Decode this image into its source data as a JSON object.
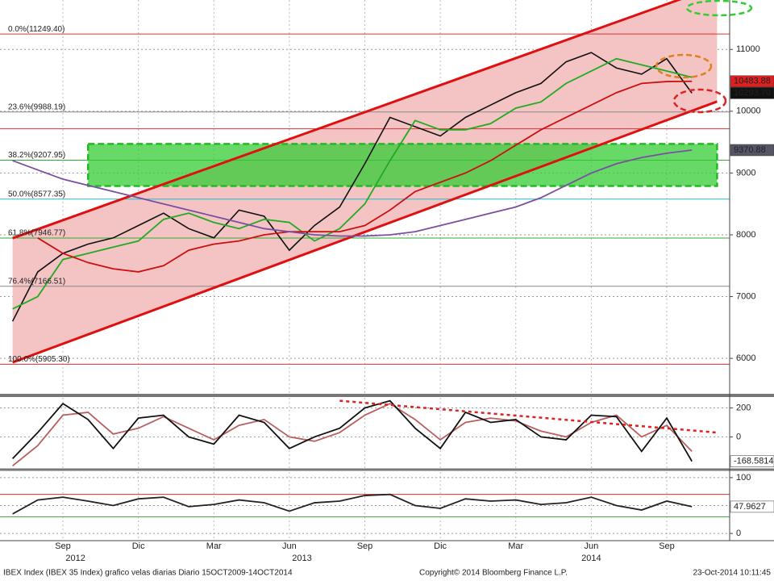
{
  "chart_data": [
    {
      "type": "line",
      "x": [
        "2012-07",
        "2012-08",
        "2012-09",
        "2012-10",
        "2012-11",
        "2012-12",
        "2013-01",
        "2013-02",
        "2013-03",
        "2013-04",
        "2013-05",
        "2013-06",
        "2013-07",
        "2013-08",
        "2013-09",
        "2013-10",
        "2013-11",
        "2013-12",
        "2014-01",
        "2014-02",
        "2014-03",
        "2014-04",
        "2014-05",
        "2014-06",
        "2014-07",
        "2014-08",
        "2014-09",
        "2014-10"
      ],
      "series": [
        {
          "color": "#111111",
          "values": [
            6600,
            7400,
            7700,
            7850,
            7950,
            8150,
            8350,
            8100,
            7950,
            8400,
            8300,
            7750,
            8150,
            8450,
            9150,
            9900,
            9750,
            9600,
            9900,
            10100,
            10300,
            10450,
            10800,
            10950,
            10700,
            10600,
            10850,
            10293.7
          ]
        },
        {
          "color": "#22aa22",
          "values": [
            6800,
            7000,
            7600,
            7700,
            7800,
            7900,
            8250,
            8350,
            8200,
            8100,
            8250,
            8200,
            7900,
            8100,
            8500,
            9200,
            9850,
            9700,
            9700,
            9800,
            10050,
            10150,
            10450,
            10650,
            10850,
            10750,
            10650,
            10550
          ]
        },
        {
          "color": "#cc1111",
          "values": [
            null,
            7950,
            7700,
            7550,
            7450,
            7400,
            7500,
            7750,
            7850,
            7900,
            8000,
            8050,
            8050,
            8050,
            8150,
            8400,
            8700,
            8850,
            9000,
            9200,
            9450,
            9700,
            9900,
            10100,
            10300,
            10450,
            10480,
            10483.88
          ]
        },
        {
          "color": "#7b4fa0",
          "values": [
            9200,
            9050,
            8900,
            8800,
            8700,
            8600,
            8500,
            8400,
            8300,
            8200,
            8100,
            8050,
            8000,
            7980,
            7980,
            8000,
            8050,
            8150,
            8250,
            8350,
            8450,
            8600,
            8800,
            9000,
            9150,
            9250,
            9320,
            9370.88
          ]
        }
      ],
      "ylim": [
        5440,
        11800
      ],
      "yticks": [
        6000,
        7000,
        8000,
        9000,
        10000,
        11000
      ],
      "grid": true,
      "channel": {
        "x": [
          "2012-07",
          "2014-11"
        ],
        "upper": [
          7945,
          12025
        ],
        "lower": [
          5935,
          10157
        ],
        "color": "#e01010",
        "fill": "#f4c4c4"
      },
      "zone": {
        "x": [
          "2012-10",
          "2014-11"
        ],
        "range": [
          8790,
          9470
        ],
        "color": "#33cc33"
      },
      "levels": [
        {
          "label": "0.0%(11249.40)",
          "value": 11249.4,
          "color": "#e03030"
        },
        {
          "label": "23.6%(9988.19)",
          "value": 9988.19,
          "color": "#888888"
        },
        {
          "label": "38.2%(9207.95)",
          "value": 9207.95,
          "color": "#33aa33"
        },
        {
          "label": "50.0%(8577.35)",
          "value": 8577.35,
          "color": "#22bbcc"
        },
        {
          "label": "61.8%(7946.77)",
          "value": 7946.77,
          "color": "#33aa33"
        },
        {
          "label": "76.4%(7166.51)",
          "value": 7166.51,
          "color": "#888888"
        },
        {
          "label": "100.0%(5905.30)",
          "value": 5905.3,
          "color": "#e03030"
        }
      ],
      "lines": [
        {
          "value": 9715,
          "color": "#e03030"
        }
      ],
      "tags": [
        {
          "value": 10483.88,
          "label": "10483.88",
          "color": "#e02020",
          "text_color": "#ffffff"
        },
        {
          "value": 10293.7,
          "label": "10293.70",
          "color": "#111111",
          "text_color": "#ffffff"
        },
        {
          "value": 9370.88,
          "label": "9370.88",
          "color": "#555566",
          "text_color": "#ffffff"
        }
      ]
    },
    {
      "type": "line",
      "x": [
        "2012-07",
        "2012-08",
        "2012-09",
        "2012-10",
        "2012-11",
        "2012-12",
        "2013-01",
        "2013-02",
        "2013-03",
        "2013-04",
        "2013-05",
        "2013-06",
        "2013-07",
        "2013-08",
        "2013-09",
        "2013-10",
        "2013-11",
        "2013-12",
        "2014-01",
        "2014-02",
        "2014-03",
        "2014-04",
        "2014-05",
        "2014-06",
        "2014-07",
        "2014-08",
        "2014-09",
        "2014-10"
      ],
      "series": [
        {
          "color": "#b86060",
          "values": [
            -200,
            -60,
            150,
            170,
            20,
            60,
            140,
            60,
            -20,
            80,
            120,
            0,
            -30,
            30,
            150,
            230,
            120,
            -20,
            100,
            130,
            110,
            40,
            0,
            100,
            150,
            0,
            80,
            -100
          ]
        },
        {
          "color": "#111111",
          "values": [
            -150,
            30,
            230,
            120,
            -80,
            130,
            150,
            0,
            -50,
            150,
            100,
            -80,
            0,
            60,
            200,
            250,
            60,
            -80,
            170,
            100,
            120,
            0,
            -20,
            150,
            140,
            -100,
            130,
            -168.5814
          ]
        }
      ],
      "ylim": [
        -215,
        270
      ],
      "yticks": [
        0,
        200
      ],
      "grid": true,
      "trend": {
        "x": [
          "2013-08",
          "2014-11"
        ],
        "values": [
          250,
          30
        ],
        "color": "#dd2222"
      },
      "tags": [
        {
          "value": -168.5814,
          "label": "-168.5814",
          "color": "#ffffff",
          "text_color": "#000000"
        }
      ]
    },
    {
      "type": "line",
      "x": [
        "2012-07",
        "2012-08",
        "2012-09",
        "2012-10",
        "2012-11",
        "2012-12",
        "2013-01",
        "2013-02",
        "2013-03",
        "2013-04",
        "2013-05",
        "2013-06",
        "2013-07",
        "2013-08",
        "2013-09",
        "2013-10",
        "2013-11",
        "2013-12",
        "2014-01",
        "2014-02",
        "2014-03",
        "2014-04",
        "2014-05",
        "2014-06",
        "2014-07",
        "2014-08",
        "2014-09",
        "2014-10"
      ],
      "series": [
        {
          "color": "#222222",
          "values": [
            35,
            60,
            65,
            58,
            50,
            62,
            65,
            48,
            52,
            60,
            55,
            40,
            55,
            58,
            68,
            70,
            50,
            45,
            62,
            58,
            60,
            52,
            55,
            65,
            50,
            42,
            58,
            47.9627
          ]
        }
      ],
      "ylim": [
        -10,
        110
      ],
      "yticks": [
        0,
        50,
        100
      ],
      "grid": true,
      "lines": [
        {
          "value": 70,
          "color": "#e03030"
        },
        {
          "value": 30,
          "color": "#33aa33"
        }
      ],
      "tags": [
        {
          "value": 47.9627,
          "label": "47.9627",
          "color": "#ffffff",
          "text_color": "#000000"
        }
      ],
      "xlim": [
        "2012-07",
        "2014-11"
      ],
      "xticks": [
        {
          "value": "2012-09",
          "label": "Sep"
        },
        {
          "value": "2012-12",
          "label": "Dic"
        },
        {
          "value": "2013-03",
          "label": "Mar"
        },
        {
          "value": "2013-06",
          "label": "Jun"
        },
        {
          "value": "2013-09",
          "label": "Sep"
        },
        {
          "value": "2013-12",
          "label": "Dic"
        },
        {
          "value": "2014-03",
          "label": "Mar"
        },
        {
          "value": "2014-06",
          "label": "Jun"
        },
        {
          "value": "2014-09",
          "label": "Sep"
        }
      ],
      "years": [
        "2012",
        "2013",
        "2014"
      ]
    }
  ],
  "footer": {
    "left": "IBEX Index (IBEX 35 Index) grafico velas diarias  Diario 15OCT2009-14OCT2014",
    "center": "Copyright© 2014 Bloomberg Finance L.P.",
    "right": "23-Oct-2014 10:11:45"
  }
}
